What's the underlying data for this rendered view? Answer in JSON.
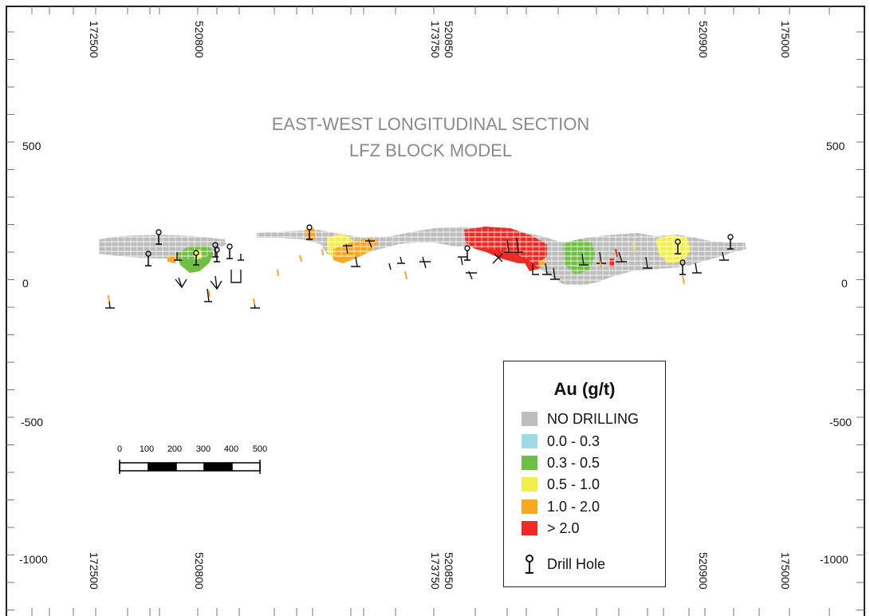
{
  "title": {
    "line1": "EAST-WEST LONGITUDINAL SECTION",
    "line2": "LFZ BLOCK MODEL"
  },
  "frame": {
    "left_elev_labels": [
      "500",
      "0",
      "-500",
      "-1000"
    ],
    "right_elev_labels": [
      "500",
      "0",
      "-500",
      "-1000"
    ],
    "top_x_labels": [
      "172500",
      "520800",
      "520850",
      "173750",
      "520900",
      "175000"
    ],
    "bottom_x_labels": [
      "172500",
      "520800",
      "173750",
      "520850",
      "520900",
      "175000"
    ]
  },
  "scale_bar": {
    "ticks": [
      "0",
      "100",
      "200",
      "300",
      "400",
      "500"
    ]
  },
  "legend": {
    "title": "Au (g/t)",
    "items": [
      {
        "label": "NO DRILLING",
        "color": "#bdbdbd"
      },
      {
        "label": "0.0 - 0.3",
        "color": "#9fd9e6"
      },
      {
        "label": "0.3 - 0.5",
        "color": "#6fbf44"
      },
      {
        "label": "0.5 - 1.0",
        "color": "#f2ee4a"
      },
      {
        "label": "1.0 - 2.0",
        "color": "#f7a823"
      },
      {
        "label": "> 2.0",
        "color": "#ee2a24"
      }
    ],
    "drill_hole_label": "Drill Hole"
  },
  "colors": {
    "no_drilling": "#bdbdbd",
    "low": "#9fd9e6",
    "green": "#6fbf44",
    "yellow": "#f2ee4a",
    "orange": "#f7a823",
    "red": "#ee2a24"
  }
}
